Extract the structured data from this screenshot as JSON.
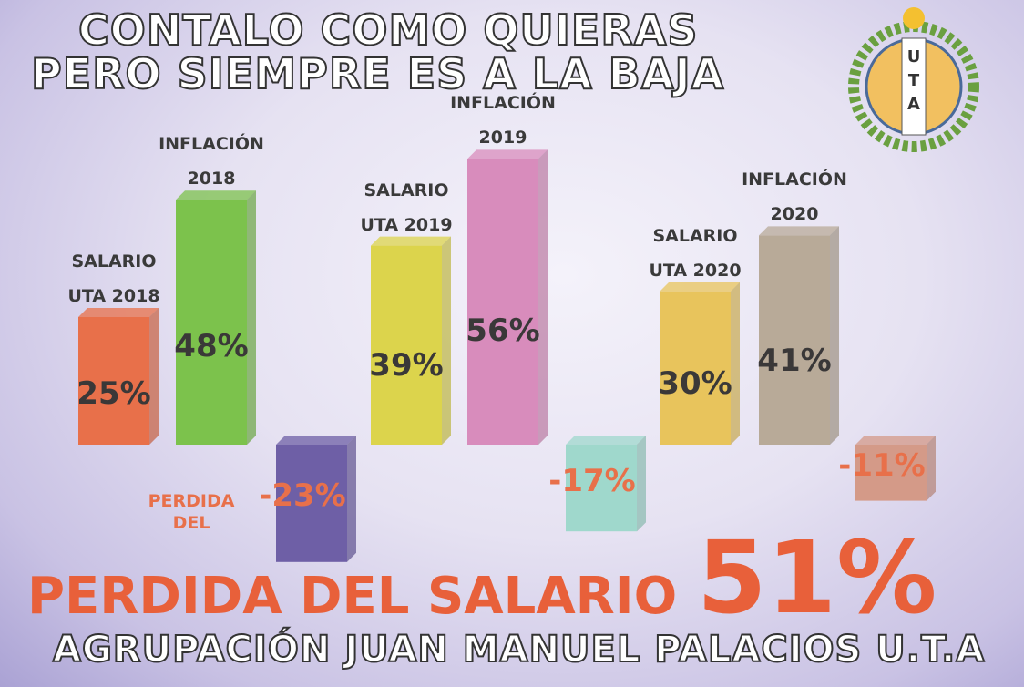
{
  "chart_data": {
    "type": "bar3d",
    "title": "CONTALO COMO QUIERAS",
    "subtitle": "PERO SIEMPRE ES A LA BAJA",
    "categories": [
      "SALARIO\nUTA 2018",
      "INFLACIÓN\n2018",
      "PERDIDA\nDEL",
      "SALARIO\nUTA 2019",
      "INFLACIÓN\n2019",
      null,
      "SALARIO\nUTA 2020",
      "INFLACIÓN\n2020",
      null
    ],
    "values": [
      25,
      48,
      -23,
      39,
      56,
      -17,
      30,
      41,
      -11
    ],
    "value_labels": [
      "25%",
      "48%",
      "-23%",
      "39%",
      "56%",
      "-17%",
      "30%",
      "41%",
      "-11%"
    ],
    "colors": [
      "#e8704a",
      "#7cc24c",
      "#6e5fa6",
      "#dcd44c",
      "#d88cbc",
      "#9fd8cc",
      "#e8c45c",
      "#b8aa98",
      "#d49a88"
    ],
    "annotations": [
      "PERDIDA DEL SALARIO",
      "51%",
      "AGRUPACIÓN JUAN MANUEL PALACIOS U.T.A"
    ]
  },
  "logo": [
    "U",
    "T",
    "A"
  ]
}
